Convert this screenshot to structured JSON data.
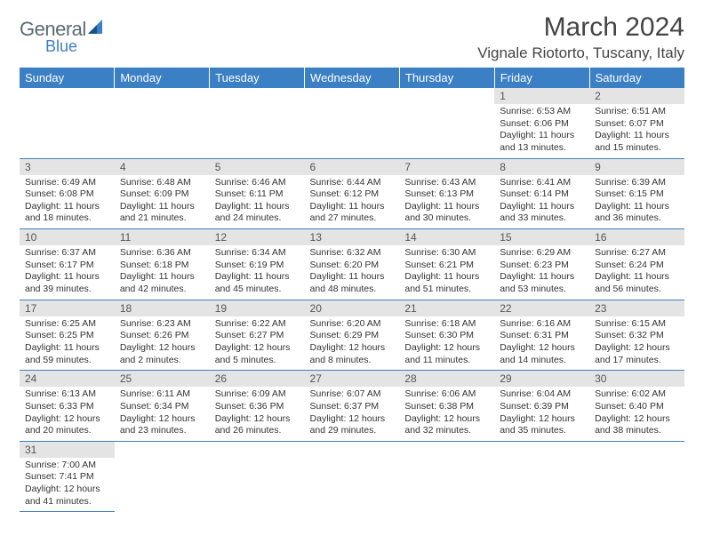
{
  "logo": {
    "general": "General",
    "blue": "Blue"
  },
  "title": "March 2024",
  "location": "Vignale Riotorto, Tuscany, Italy",
  "colors": {
    "header_bg": "#3b7fc4",
    "daynum_bg": "#e4e4e4",
    "row_divider": "#3b7fc4"
  },
  "day_headers": [
    "Sunday",
    "Monday",
    "Tuesday",
    "Wednesday",
    "Thursday",
    "Friday",
    "Saturday"
  ],
  "weeks": [
    [
      null,
      null,
      null,
      null,
      null,
      {
        "num": "1",
        "sunrise": "Sunrise: 6:53 AM",
        "sunset": "Sunset: 6:06 PM",
        "daylight": "Daylight: 11 hours and 13 minutes."
      },
      {
        "num": "2",
        "sunrise": "Sunrise: 6:51 AM",
        "sunset": "Sunset: 6:07 PM",
        "daylight": "Daylight: 11 hours and 15 minutes."
      }
    ],
    [
      {
        "num": "3",
        "sunrise": "Sunrise: 6:49 AM",
        "sunset": "Sunset: 6:08 PM",
        "daylight": "Daylight: 11 hours and 18 minutes."
      },
      {
        "num": "4",
        "sunrise": "Sunrise: 6:48 AM",
        "sunset": "Sunset: 6:09 PM",
        "daylight": "Daylight: 11 hours and 21 minutes."
      },
      {
        "num": "5",
        "sunrise": "Sunrise: 6:46 AM",
        "sunset": "Sunset: 6:11 PM",
        "daylight": "Daylight: 11 hours and 24 minutes."
      },
      {
        "num": "6",
        "sunrise": "Sunrise: 6:44 AM",
        "sunset": "Sunset: 6:12 PM",
        "daylight": "Daylight: 11 hours and 27 minutes."
      },
      {
        "num": "7",
        "sunrise": "Sunrise: 6:43 AM",
        "sunset": "Sunset: 6:13 PM",
        "daylight": "Daylight: 11 hours and 30 minutes."
      },
      {
        "num": "8",
        "sunrise": "Sunrise: 6:41 AM",
        "sunset": "Sunset: 6:14 PM",
        "daylight": "Daylight: 11 hours and 33 minutes."
      },
      {
        "num": "9",
        "sunrise": "Sunrise: 6:39 AM",
        "sunset": "Sunset: 6:15 PM",
        "daylight": "Daylight: 11 hours and 36 minutes."
      }
    ],
    [
      {
        "num": "10",
        "sunrise": "Sunrise: 6:37 AM",
        "sunset": "Sunset: 6:17 PM",
        "daylight": "Daylight: 11 hours and 39 minutes."
      },
      {
        "num": "11",
        "sunrise": "Sunrise: 6:36 AM",
        "sunset": "Sunset: 6:18 PM",
        "daylight": "Daylight: 11 hours and 42 minutes."
      },
      {
        "num": "12",
        "sunrise": "Sunrise: 6:34 AM",
        "sunset": "Sunset: 6:19 PM",
        "daylight": "Daylight: 11 hours and 45 minutes."
      },
      {
        "num": "13",
        "sunrise": "Sunrise: 6:32 AM",
        "sunset": "Sunset: 6:20 PM",
        "daylight": "Daylight: 11 hours and 48 minutes."
      },
      {
        "num": "14",
        "sunrise": "Sunrise: 6:30 AM",
        "sunset": "Sunset: 6:21 PM",
        "daylight": "Daylight: 11 hours and 51 minutes."
      },
      {
        "num": "15",
        "sunrise": "Sunrise: 6:29 AM",
        "sunset": "Sunset: 6:23 PM",
        "daylight": "Daylight: 11 hours and 53 minutes."
      },
      {
        "num": "16",
        "sunrise": "Sunrise: 6:27 AM",
        "sunset": "Sunset: 6:24 PM",
        "daylight": "Daylight: 11 hours and 56 minutes."
      }
    ],
    [
      {
        "num": "17",
        "sunrise": "Sunrise: 6:25 AM",
        "sunset": "Sunset: 6:25 PM",
        "daylight": "Daylight: 11 hours and 59 minutes."
      },
      {
        "num": "18",
        "sunrise": "Sunrise: 6:23 AM",
        "sunset": "Sunset: 6:26 PM",
        "daylight": "Daylight: 12 hours and 2 minutes."
      },
      {
        "num": "19",
        "sunrise": "Sunrise: 6:22 AM",
        "sunset": "Sunset: 6:27 PM",
        "daylight": "Daylight: 12 hours and 5 minutes."
      },
      {
        "num": "20",
        "sunrise": "Sunrise: 6:20 AM",
        "sunset": "Sunset: 6:29 PM",
        "daylight": "Daylight: 12 hours and 8 minutes."
      },
      {
        "num": "21",
        "sunrise": "Sunrise: 6:18 AM",
        "sunset": "Sunset: 6:30 PM",
        "daylight": "Daylight: 12 hours and 11 minutes."
      },
      {
        "num": "22",
        "sunrise": "Sunrise: 6:16 AM",
        "sunset": "Sunset: 6:31 PM",
        "daylight": "Daylight: 12 hours and 14 minutes."
      },
      {
        "num": "23",
        "sunrise": "Sunrise: 6:15 AM",
        "sunset": "Sunset: 6:32 PM",
        "daylight": "Daylight: 12 hours and 17 minutes."
      }
    ],
    [
      {
        "num": "24",
        "sunrise": "Sunrise: 6:13 AM",
        "sunset": "Sunset: 6:33 PM",
        "daylight": "Daylight: 12 hours and 20 minutes."
      },
      {
        "num": "25",
        "sunrise": "Sunrise: 6:11 AM",
        "sunset": "Sunset: 6:34 PM",
        "daylight": "Daylight: 12 hours and 23 minutes."
      },
      {
        "num": "26",
        "sunrise": "Sunrise: 6:09 AM",
        "sunset": "Sunset: 6:36 PM",
        "daylight": "Daylight: 12 hours and 26 minutes."
      },
      {
        "num": "27",
        "sunrise": "Sunrise: 6:07 AM",
        "sunset": "Sunset: 6:37 PM",
        "daylight": "Daylight: 12 hours and 29 minutes."
      },
      {
        "num": "28",
        "sunrise": "Sunrise: 6:06 AM",
        "sunset": "Sunset: 6:38 PM",
        "daylight": "Daylight: 12 hours and 32 minutes."
      },
      {
        "num": "29",
        "sunrise": "Sunrise: 6:04 AM",
        "sunset": "Sunset: 6:39 PM",
        "daylight": "Daylight: 12 hours and 35 minutes."
      },
      {
        "num": "30",
        "sunrise": "Sunrise: 6:02 AM",
        "sunset": "Sunset: 6:40 PM",
        "daylight": "Daylight: 12 hours and 38 minutes."
      }
    ],
    [
      {
        "num": "31",
        "sunrise": "Sunrise: 7:00 AM",
        "sunset": "Sunset: 7:41 PM",
        "daylight": "Daylight: 12 hours and 41 minutes."
      },
      null,
      null,
      null,
      null,
      null,
      null
    ]
  ]
}
